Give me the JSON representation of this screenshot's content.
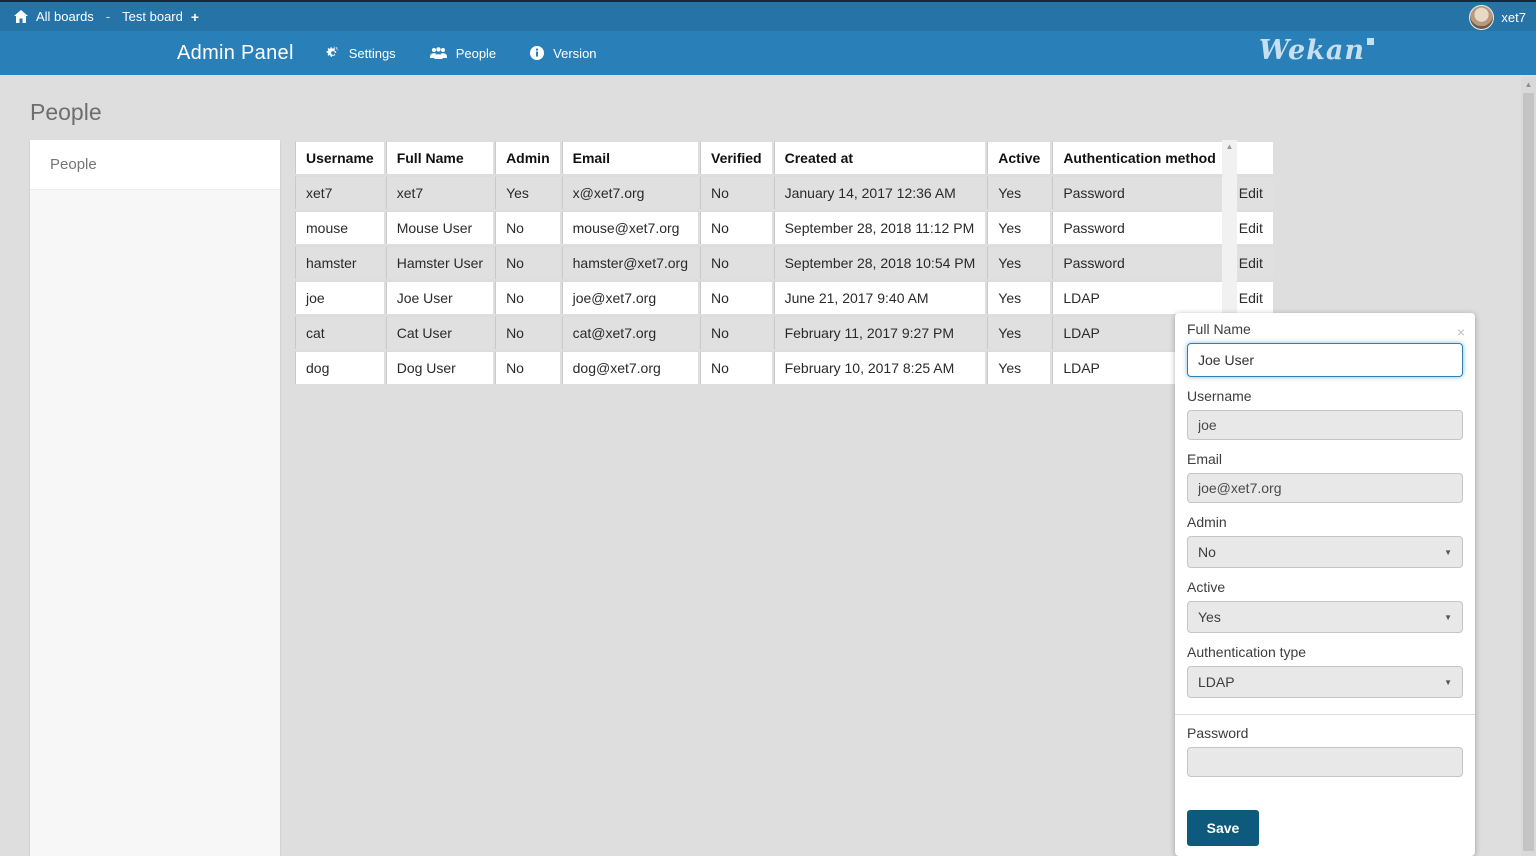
{
  "colors": {
    "topbar": "#2573a7",
    "navbar": "#2980b9",
    "page_bg": "#dedede",
    "row_stripe": "#e0e0e0",
    "save_button": "#0d5a7d",
    "focus_border": "#2980b9"
  },
  "icons": {
    "home": "home-icon",
    "plus": "+",
    "separator": "-",
    "gear": "gear-icon",
    "people": "people-icon",
    "info": "info-icon",
    "close": "×",
    "caret_down": "▼",
    "scroll_up": "▲"
  },
  "topbar": {
    "all_boards": "All boards",
    "separator": "-",
    "board_name": "Test board",
    "user_name": "xet7"
  },
  "navbar": {
    "title": "Admin Panel",
    "menu": [
      {
        "label": "Settings"
      },
      {
        "label": "People"
      },
      {
        "label": "Version"
      }
    ],
    "logo_text": "Wekan"
  },
  "page": {
    "heading": "People",
    "sidebar": {
      "items": [
        {
          "label": "People",
          "selected": true
        }
      ]
    }
  },
  "table": {
    "columns": [
      "Username",
      "Full Name",
      "Admin",
      "Email",
      "Verified",
      "Created at",
      "Active",
      "Authentication method",
      ""
    ],
    "edit_label": "Edit",
    "rows": [
      {
        "username": "xet7",
        "full_name": "xet7",
        "admin": "Yes",
        "email": "x@xet7.org",
        "verified": "No",
        "created_at": "January 14, 2017 12:36 AM",
        "active": "Yes",
        "auth_method": "Password"
      },
      {
        "username": "mouse",
        "full_name": "Mouse User",
        "admin": "No",
        "email": "mouse@xet7.org",
        "verified": "No",
        "created_at": "September 28, 2018 11:12 PM",
        "active": "Yes",
        "auth_method": "Password"
      },
      {
        "username": "hamster",
        "full_name": "Hamster User",
        "admin": "No",
        "email": "hamster@xet7.org",
        "verified": "No",
        "created_at": "September 28, 2018 10:54 PM",
        "active": "Yes",
        "auth_method": "Password"
      },
      {
        "username": "joe",
        "full_name": "Joe User",
        "admin": "No",
        "email": "joe@xet7.org",
        "verified": "No",
        "created_at": "June 21, 2017 9:40 AM",
        "active": "Yes",
        "auth_method": "LDAP"
      },
      {
        "username": "cat",
        "full_name": "Cat User",
        "admin": "No",
        "email": "cat@xet7.org",
        "verified": "No",
        "created_at": "February 11, 2017 9:27 PM",
        "active": "Yes",
        "auth_method": "LDAP"
      },
      {
        "username": "dog",
        "full_name": "Dog User",
        "admin": "No",
        "email": "dog@xet7.org",
        "verified": "No",
        "created_at": "February 10, 2017 8:25 AM",
        "active": "Yes",
        "auth_method": "LDAP"
      }
    ]
  },
  "edit_panel": {
    "full_name": {
      "label": "Full Name",
      "value": "Joe User"
    },
    "username": {
      "label": "Username",
      "value": "joe"
    },
    "email": {
      "label": "Email",
      "value": "joe@xet7.org"
    },
    "admin": {
      "label": "Admin",
      "value": "No"
    },
    "active": {
      "label": "Active",
      "value": "Yes"
    },
    "auth_type": {
      "label": "Authentication type",
      "value": "LDAP"
    },
    "password": {
      "label": "Password",
      "value": ""
    },
    "save_label": "Save",
    "close_glyph": "×"
  }
}
